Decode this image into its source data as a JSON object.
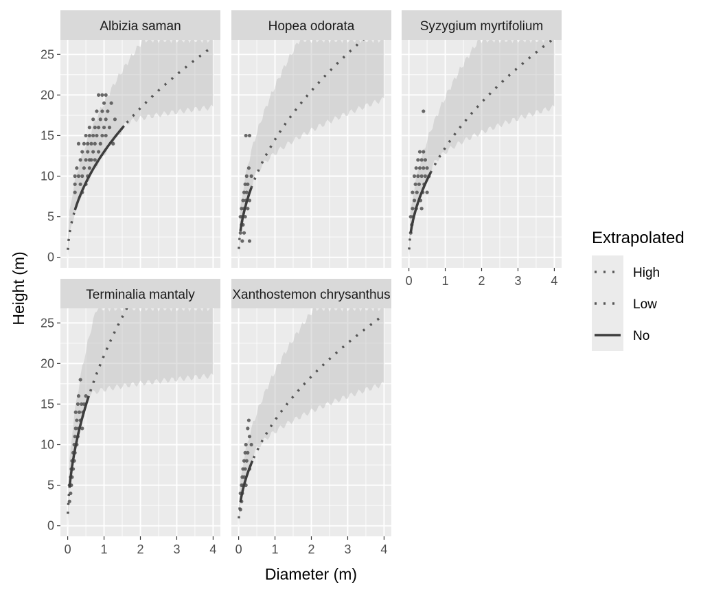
{
  "chart_data": {
    "type": "scatter",
    "xlabel": "Diameter (m)",
    "ylabel": "Height (m)",
    "xlim": [
      -0.2,
      4.2
    ],
    "ylim": [
      -1.3,
      26.8
    ],
    "x_ticks": [
      0,
      1,
      2,
      3,
      4
    ],
    "y_ticks": [
      0,
      5,
      10,
      15,
      20,
      25
    ],
    "grid": true,
    "legend": {
      "title": "Extrapolated",
      "position": "right",
      "entries": [
        {
          "label": "High",
          "linetype": "dotted"
        },
        {
          "label": "Low",
          "linetype": "dotted"
        },
        {
          "label": "No",
          "linetype": "solid"
        }
      ]
    },
    "panels": [
      {
        "strip": "Albizia saman",
        "a": 13.0,
        "b": 0.5,
        "obs_max": 1.55,
        "band_low_at_4": 18.5,
        "band_high_at_2": 26.8,
        "points": [
          [
            0.2,
            8
          ],
          [
            0.2,
            9
          ],
          [
            0.2,
            10
          ],
          [
            0.25,
            11
          ],
          [
            0.3,
            14
          ],
          [
            0.3,
            10
          ],
          [
            0.35,
            9
          ],
          [
            0.35,
            12
          ],
          [
            0.4,
            8
          ],
          [
            0.4,
            10
          ],
          [
            0.4,
            13
          ],
          [
            0.45,
            14
          ],
          [
            0.45,
            11
          ],
          [
            0.5,
            9
          ],
          [
            0.5,
            12
          ],
          [
            0.5,
            15
          ],
          [
            0.55,
            10
          ],
          [
            0.55,
            13
          ],
          [
            0.55,
            14
          ],
          [
            0.6,
            11
          ],
          [
            0.6,
            12
          ],
          [
            0.6,
            15
          ],
          [
            0.6,
            16
          ],
          [
            0.65,
            14
          ],
          [
            0.65,
            12
          ],
          [
            0.7,
            13
          ],
          [
            0.7,
            15
          ],
          [
            0.7,
            17
          ],
          [
            0.75,
            12
          ],
          [
            0.75,
            14
          ],
          [
            0.75,
            16
          ],
          [
            0.8,
            15
          ],
          [
            0.8,
            18
          ],
          [
            0.85,
            13
          ],
          [
            0.85,
            16
          ],
          [
            0.85,
            20
          ],
          [
            0.9,
            14
          ],
          [
            0.9,
            17
          ],
          [
            0.95,
            15
          ],
          [
            0.95,
            18
          ],
          [
            0.95,
            20
          ],
          [
            1.0,
            16
          ],
          [
            1.0,
            19
          ],
          [
            1.05,
            15
          ],
          [
            1.05,
            17
          ],
          [
            1.05,
            20
          ],
          [
            1.1,
            18
          ],
          [
            1.15,
            16
          ],
          [
            1.2,
            19
          ],
          [
            1.25,
            14
          ],
          [
            1.3,
            17
          ]
        ]
      },
      {
        "strip": "Hopea odorata",
        "a": 14.5,
        "b": 0.5,
        "obs_max": 0.35,
        "band_low_at_4": 19.5,
        "band_high_at_2": 26.8,
        "points": [
          [
            0.05,
            3
          ],
          [
            0.05,
            5
          ],
          [
            0.08,
            4
          ],
          [
            0.08,
            6
          ],
          [
            0.1,
            2
          ],
          [
            0.1,
            5
          ],
          [
            0.12,
            7
          ],
          [
            0.12,
            4
          ],
          [
            0.15,
            8
          ],
          [
            0.15,
            6
          ],
          [
            0.15,
            3
          ],
          [
            0.18,
            9
          ],
          [
            0.18,
            5
          ],
          [
            0.2,
            7
          ],
          [
            0.2,
            15
          ],
          [
            0.22,
            8
          ],
          [
            0.22,
            10
          ],
          [
            0.25,
            6
          ],
          [
            0.25,
            9
          ],
          [
            0.28,
            11
          ],
          [
            0.3,
            15
          ],
          [
            0.3,
            7
          ],
          [
            0.35,
            10
          ],
          [
            0.3,
            2
          ]
        ]
      },
      {
        "strip": "Syzygium myrtifolium",
        "a": 13.5,
        "b": 0.5,
        "obs_max": 0.6,
        "band_low_at_4": 18.5,
        "band_high_at_2": 26.8,
        "points": [
          [
            0.05,
            3
          ],
          [
            0.05,
            5
          ],
          [
            0.08,
            4
          ],
          [
            0.1,
            6
          ],
          [
            0.1,
            8
          ],
          [
            0.12,
            5
          ],
          [
            0.15,
            7
          ],
          [
            0.15,
            10
          ],
          [
            0.18,
            9
          ],
          [
            0.2,
            6
          ],
          [
            0.2,
            11
          ],
          [
            0.22,
            8
          ],
          [
            0.25,
            10
          ],
          [
            0.25,
            12
          ],
          [
            0.28,
            9
          ],
          [
            0.3,
            11
          ],
          [
            0.3,
            13
          ],
          [
            0.32,
            7
          ],
          [
            0.35,
            10
          ],
          [
            0.35,
            12
          ],
          [
            0.38,
            8
          ],
          [
            0.4,
            11
          ],
          [
            0.4,
            13
          ],
          [
            0.42,
            9
          ],
          [
            0.45,
            10
          ],
          [
            0.45,
            12
          ],
          [
            0.5,
            8
          ],
          [
            0.5,
            11
          ],
          [
            0.55,
            10
          ],
          [
            0.4,
            18
          ],
          [
            0.35,
            6
          ]
        ]
      },
      {
        "strip": "Terminalia mantaly",
        "a": 21.0,
        "b": 0.5,
        "obs_max": 0.58,
        "band_low_at_4": 18.5,
        "band_high_at_2": 26.8,
        "points": [
          [
            0.05,
            3
          ],
          [
            0.05,
            5
          ],
          [
            0.08,
            4
          ],
          [
            0.08,
            6
          ],
          [
            0.1,
            7
          ],
          [
            0.1,
            5
          ],
          [
            0.12,
            8
          ],
          [
            0.12,
            6
          ],
          [
            0.15,
            9
          ],
          [
            0.15,
            7
          ],
          [
            0.18,
            10
          ],
          [
            0.18,
            8
          ],
          [
            0.2,
            11
          ],
          [
            0.2,
            9
          ],
          [
            0.22,
            12
          ],
          [
            0.22,
            14
          ],
          [
            0.25,
            10
          ],
          [
            0.25,
            13
          ],
          [
            0.28,
            15
          ],
          [
            0.28,
            11
          ],
          [
            0.3,
            12
          ],
          [
            0.3,
            16
          ],
          [
            0.32,
            14
          ],
          [
            0.35,
            13
          ],
          [
            0.35,
            18
          ],
          [
            0.38,
            15
          ],
          [
            0.4,
            12
          ],
          [
            0.42,
            14
          ],
          [
            0.45,
            15
          ],
          [
            0.5,
            16
          ]
        ]
      },
      {
        "strip": "Xanthostemon chrysanthus",
        "a": 13.0,
        "b": 0.5,
        "obs_max": 0.38,
        "band_low_at_4": 17.5,
        "band_high_at_2": 26.8,
        "points": [
          [
            0.05,
            2
          ],
          [
            0.05,
            4
          ],
          [
            0.08,
            3
          ],
          [
            0.08,
            5
          ],
          [
            0.1,
            6
          ],
          [
            0.1,
            4
          ],
          [
            0.12,
            7
          ],
          [
            0.12,
            5
          ],
          [
            0.15,
            8
          ],
          [
            0.15,
            6
          ],
          [
            0.18,
            9
          ],
          [
            0.18,
            7
          ],
          [
            0.2,
            10
          ],
          [
            0.2,
            5
          ],
          [
            0.22,
            8
          ],
          [
            0.25,
            12
          ],
          [
            0.25,
            9
          ],
          [
            0.28,
            13
          ],
          [
            0.3,
            11
          ],
          [
            0.3,
            7
          ],
          [
            0.35,
            10
          ]
        ]
      }
    ]
  }
}
